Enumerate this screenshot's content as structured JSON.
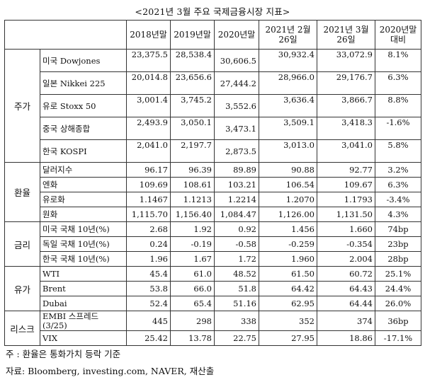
{
  "title": "<2021년 3월 주요 국제금융시장 지표>",
  "headers": [
    "2018년말",
    "2019년말",
    "2020년말",
    "2021년 2월 26일",
    "2021년 3월 26일",
    "2020년말 대비"
  ],
  "groups": {
    "stock": "주가",
    "fx": "환율",
    "rate": "금리",
    "oil": "유가",
    "risk": "리스크"
  },
  "rows": [
    {
      "name": "미국 Dowjones",
      "v": [
        "23,375.5",
        "28,538.4",
        "30,606.5",
        "30,932.4",
        "33,072.9",
        "8.1%"
      ]
    },
    {
      "name": "일본 Nikkei 225",
      "v": [
        "20,014.8",
        "23,656.6",
        "27,444.2",
        "28,966.0",
        "29,176.7",
        "6.3%"
      ]
    },
    {
      "name": "유로 Stoxx 50",
      "v": [
        "3,001.4",
        "3,745.2",
        "3,552.6",
        "3,636.4",
        "3,866.7",
        "8.8%"
      ]
    },
    {
      "name": "중국 상해종합",
      "v": [
        "2,493.9",
        "3,050.1",
        "3,473.1",
        "3,509.1",
        "3,418.3",
        "-1.6%"
      ]
    },
    {
      "name": "한국 KOSPI",
      "v": [
        "2,041.0",
        "2,197.7",
        "2,873.5",
        "3,013.0",
        "3,041.0",
        "5.8%"
      ]
    },
    {
      "name": "달러지수",
      "v": [
        "96.17",
        "96.39",
        "89.89",
        "90.88",
        "92.77",
        "3.2%"
      ]
    },
    {
      "name": "엔화",
      "v": [
        "109.69",
        "108.61",
        "103.21",
        "106.54",
        "109.67",
        "6.3%"
      ]
    },
    {
      "name": "유로화",
      "v": [
        "1.1467",
        "1.1213",
        "1.2214",
        "1.2070",
        "1.1793",
        "-3.4%"
      ]
    },
    {
      "name": "원화",
      "v": [
        "1,115.70",
        "1,156.40",
        "1,084.47",
        "1,126.00",
        "1,131.50",
        "4.3%"
      ]
    },
    {
      "name": "미국 국채 10년(%)",
      "v": [
        "2.68",
        "1.92",
        "0.92",
        "1.456",
        "1.660",
        "74bp"
      ]
    },
    {
      "name": "독일 국채 10년(%)",
      "v": [
        "0.24",
        "-0.19",
        "-0.58",
        "-0.259",
        "-0.354",
        "23bp"
      ]
    },
    {
      "name": "한국 국채 10년(%)",
      "v": [
        "1.96",
        "1.67",
        "1.72",
        "1.960",
        "2.004",
        "28bp"
      ]
    },
    {
      "name": "WTI",
      "v": [
        "45.4",
        "61.0",
        "48.52",
        "61.50",
        "60.72",
        "25.1%"
      ]
    },
    {
      "name": "Brent",
      "v": [
        "53.8",
        "66.0",
        "51.8",
        "64.42",
        "64.43",
        "24.4%"
      ]
    },
    {
      "name": "Dubai",
      "v": [
        "52.4",
        "65.4",
        "51.16",
        "62.95",
        "64.44",
        "26.0%"
      ]
    },
    {
      "name": "EMBI 스프레드 (3/25)",
      "v": [
        "445",
        "298",
        "338",
        "352",
        "374",
        "36bp"
      ]
    },
    {
      "name": "VIX",
      "v": [
        "25.42",
        "13.78",
        "22.75",
        "27.95",
        "18.86",
        "-17.1%"
      ]
    }
  ],
  "notes": [
    "주 : 환율은 통화가치 등락 기준",
    "자료: Bloomberg, investing.com, NAVER, 재산출"
  ]
}
